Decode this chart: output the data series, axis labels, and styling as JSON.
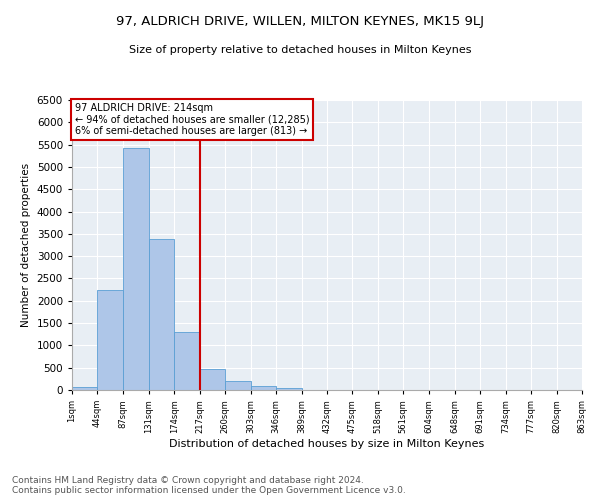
{
  "title1": "97, ALDRICH DRIVE, WILLEN, MILTON KEYNES, MK15 9LJ",
  "title2": "Size of property relative to detached houses in Milton Keynes",
  "xlabel": "Distribution of detached houses by size in Milton Keynes",
  "ylabel": "Number of detached properties",
  "footnote": "Contains HM Land Registry data © Crown copyright and database right 2024.\nContains public sector information licensed under the Open Government Licence v3.0.",
  "bar_bins": [
    1,
    44,
    87,
    131,
    174,
    217,
    260,
    303,
    346,
    389,
    432,
    475,
    518,
    561,
    604,
    648,
    691,
    734,
    777,
    820,
    863
  ],
  "bar_heights": [
    75,
    2250,
    5420,
    3380,
    1290,
    480,
    210,
    90,
    55,
    0,
    0,
    0,
    0,
    0,
    0,
    0,
    0,
    0,
    0,
    0
  ],
  "bar_color": "#aec6e8",
  "bar_edge_color": "#5a9fd4",
  "property_line_x": 217,
  "property_line_color": "#cc0000",
  "annotation_text": "97 ALDRICH DRIVE: 214sqm\n← 94% of detached houses are smaller (12,285)\n6% of semi-detached houses are larger (813) →",
  "annotation_box_color": "#cc0000",
  "annotation_text_color": "#000000",
  "ylim": [
    0,
    6500
  ],
  "yticks": [
    0,
    500,
    1000,
    1500,
    2000,
    2500,
    3000,
    3500,
    4000,
    4500,
    5000,
    5500,
    6000,
    6500
  ],
  "xtick_labels": [
    "1sqm",
    "44sqm",
    "87sqm",
    "131sqm",
    "174sqm",
    "217sqm",
    "260sqm",
    "303sqm",
    "346sqm",
    "389sqm",
    "432sqm",
    "475sqm",
    "518sqm",
    "561sqm",
    "604sqm",
    "648sqm",
    "691sqm",
    "734sqm",
    "777sqm",
    "820sqm",
    "863sqm"
  ],
  "background_color": "#e8eef4",
  "title1_fontsize": 9.5,
  "title2_fontsize": 8,
  "footnote_fontsize": 6.5,
  "ylabel_fontsize": 7.5,
  "xlabel_fontsize": 8,
  "ytick_fontsize": 7.5,
  "xtick_fontsize": 6
}
